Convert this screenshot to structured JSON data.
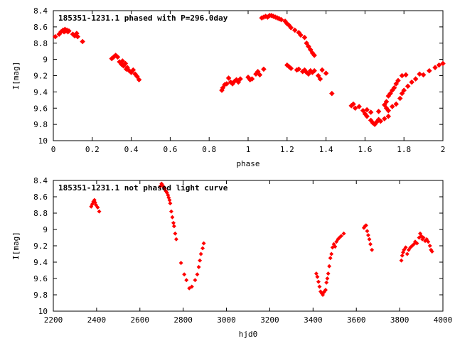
{
  "chart_data": [
    {
      "type": "scatter",
      "title": "185351-1231.1 phased with P=296.0day",
      "xlabel": "phase",
      "ylabel": "I[mag]",
      "xlim": [
        0,
        2
      ],
      "ylim": [
        8.4,
        10
      ],
      "y_inverted": true,
      "xticks": [
        "0",
        "0.2",
        "0.4",
        "0.6",
        "0.8",
        "1",
        "1.2",
        "1.4",
        "1.6",
        "1.8",
        "2"
      ],
      "yticks": [
        "8.4",
        "8.6",
        "8.8",
        "9",
        "9.2",
        "9.4",
        "9.6",
        "9.8",
        "10"
      ],
      "grid": false,
      "marker": "diamond",
      "color": "#ff0000",
      "points": [
        [
          0.01,
          8.72
        ],
        [
          0.03,
          8.69
        ],
        [
          0.04,
          8.66
        ],
        [
          0.05,
          8.64
        ],
        [
          0.055,
          8.66
        ],
        [
          0.06,
          8.63
        ],
        [
          0.065,
          8.65
        ],
        [
          0.07,
          8.64
        ],
        [
          0.075,
          8.66
        ],
        [
          0.08,
          8.65
        ],
        [
          0.1,
          8.69
        ],
        [
          0.11,
          8.71
        ],
        [
          0.12,
          8.68
        ],
        [
          0.125,
          8.72
        ],
        [
          0.15,
          8.78
        ],
        [
          0.3,
          8.99
        ],
        [
          0.31,
          8.97
        ],
        [
          0.32,
          8.95
        ],
        [
          0.33,
          8.97
        ],
        [
          0.34,
          9.03
        ],
        [
          0.35,
          9.06
        ],
        [
          0.355,
          9.02
        ],
        [
          0.36,
          9.08
        ],
        [
          0.37,
          9.05
        ],
        [
          0.375,
          9.12
        ],
        [
          0.38,
          9.1
        ],
        [
          0.39,
          9.14
        ],
        [
          0.4,
          9.16
        ],
        [
          0.41,
          9.13
        ],
        [
          0.42,
          9.18
        ],
        [
          0.43,
          9.21
        ],
        [
          0.44,
          9.25
        ],
        [
          0.865,
          9.38
        ],
        [
          0.87,
          9.35
        ],
        [
          0.88,
          9.31
        ],
        [
          0.89,
          9.3
        ],
        [
          0.9,
          9.23
        ],
        [
          0.91,
          9.28
        ],
        [
          0.92,
          9.3
        ],
        [
          0.93,
          9.27
        ],
        [
          0.94,
          9.25
        ],
        [
          0.95,
          9.28
        ],
        [
          0.96,
          9.24
        ],
        [
          1.0,
          9.22
        ],
        [
          1.01,
          9.25
        ],
        [
          1.02,
          9.24
        ],
        [
          1.04,
          9.18
        ],
        [
          1.05,
          9.15
        ],
        [
          1.06,
          9.19
        ],
        [
          1.08,
          9.12
        ],
        [
          1.07,
          8.49
        ],
        [
          1.08,
          8.48
        ],
        [
          1.09,
          8.47
        ],
        [
          1.1,
          8.48
        ],
        [
          1.11,
          8.46
        ],
        [
          1.12,
          8.46
        ],
        [
          1.13,
          8.47
        ],
        [
          1.14,
          8.48
        ],
        [
          1.15,
          8.49
        ],
        [
          1.16,
          8.5
        ],
        [
          1.17,
          8.51
        ],
        [
          1.19,
          8.53
        ],
        [
          1.2,
          8.56
        ],
        [
          1.21,
          8.58
        ],
        [
          1.22,
          8.61
        ],
        [
          1.24,
          8.64
        ],
        [
          1.26,
          8.67
        ],
        [
          1.27,
          8.7
        ],
        [
          1.29,
          8.73
        ],
        [
          1.3,
          8.8
        ],
        [
          1.31,
          8.84
        ],
        [
          1.32,
          8.88
        ],
        [
          1.33,
          8.92
        ],
        [
          1.34,
          8.95
        ],
        [
          1.2,
          9.07
        ],
        [
          1.21,
          9.09
        ],
        [
          1.22,
          9.11
        ],
        [
          1.25,
          9.13
        ],
        [
          1.26,
          9.12
        ],
        [
          1.28,
          9.15
        ],
        [
          1.29,
          9.13
        ],
        [
          1.3,
          9.16
        ],
        [
          1.31,
          9.18
        ],
        [
          1.32,
          9.14
        ],
        [
          1.33,
          9.16
        ],
        [
          1.34,
          9.14
        ],
        [
          1.36,
          9.2
        ],
        [
          1.37,
          9.24
        ],
        [
          1.38,
          9.13
        ],
        [
          1.4,
          9.17
        ],
        [
          1.43,
          9.42
        ],
        [
          1.53,
          9.57
        ],
        [
          1.54,
          9.55
        ],
        [
          1.55,
          9.6
        ],
        [
          1.57,
          9.58
        ],
        [
          1.59,
          9.63
        ],
        [
          1.6,
          9.67
        ],
        [
          1.61,
          9.7
        ],
        [
          1.63,
          9.75
        ],
        [
          1.64,
          9.78
        ],
        [
          1.65,
          9.8
        ],
        [
          1.66,
          9.77
        ],
        [
          1.67,
          9.74
        ],
        [
          1.68,
          9.76
        ],
        [
          1.7,
          9.73
        ],
        [
          1.72,
          9.7
        ],
        [
          1.61,
          9.62
        ],
        [
          1.63,
          9.65
        ],
        [
          1.67,
          9.64
        ],
        [
          1.7,
          9.56
        ],
        [
          1.71,
          9.52
        ],
        [
          1.72,
          9.45
        ],
        [
          1.73,
          9.42
        ],
        [
          1.74,
          9.38
        ],
        [
          1.75,
          9.35
        ],
        [
          1.76,
          9.3
        ],
        [
          1.77,
          9.26
        ],
        [
          1.71,
          9.6
        ],
        [
          1.72,
          9.63
        ],
        [
          1.74,
          9.58
        ],
        [
          1.76,
          9.55
        ],
        [
          1.78,
          9.48
        ],
        [
          1.79,
          9.42
        ],
        [
          1.8,
          9.38
        ],
        [
          1.82,
          9.33
        ],
        [
          1.84,
          9.28
        ],
        [
          1.86,
          9.24
        ],
        [
          1.79,
          9.2
        ],
        [
          1.81,
          9.19
        ],
        [
          1.88,
          9.18
        ],
        [
          1.9,
          9.19
        ],
        [
          1.93,
          9.14
        ],
        [
          1.96,
          9.1
        ],
        [
          1.98,
          9.07
        ],
        [
          2.0,
          9.05
        ]
      ]
    },
    {
      "type": "scatter",
      "title": "185351-1231.1 not phased light curve",
      "xlabel": "hjd0",
      "ylabel": "I[mag]",
      "xlim": [
        2200,
        4000
      ],
      "ylim": [
        8.4,
        10
      ],
      "y_inverted": true,
      "xticks": [
        "2200",
        "2400",
        "2600",
        "2800",
        "3000",
        "3200",
        "3400",
        "3600",
        "3800",
        "4000"
      ],
      "yticks": [
        "8.4",
        "8.6",
        "8.8",
        "9",
        "9.2",
        "9.4",
        "9.6",
        "9.8",
        "10"
      ],
      "grid": false,
      "marker": "diamond",
      "color": "#ff0000",
      "points": [
        [
          2375,
          8.72
        ],
        [
          2380,
          8.69
        ],
        [
          2385,
          8.66
        ],
        [
          2390,
          8.64
        ],
        [
          2393,
          8.67
        ],
        [
          2397,
          8.7
        ],
        [
          2405,
          8.73
        ],
        [
          2412,
          8.78
        ],
        [
          2695,
          8.47
        ],
        [
          2700,
          8.44
        ],
        [
          2705,
          8.46
        ],
        [
          2710,
          8.48
        ],
        [
          2715,
          8.5
        ],
        [
          2720,
          8.53
        ],
        [
          2725,
          8.55
        ],
        [
          2730,
          8.58
        ],
        [
          2733,
          8.61
        ],
        [
          2737,
          8.64
        ],
        [
          2740,
          8.68
        ],
        [
          2745,
          8.78
        ],
        [
          2750,
          8.85
        ],
        [
          2755,
          8.92
        ],
        [
          2758,
          8.96
        ],
        [
          2763,
          9.05
        ],
        [
          2768,
          9.12
        ],
        [
          2790,
          9.41
        ],
        [
          2805,
          9.55
        ],
        [
          2815,
          9.62
        ],
        [
          2828,
          9.72
        ],
        [
          2840,
          9.7
        ],
        [
          2855,
          9.62
        ],
        [
          2865,
          9.55
        ],
        [
          2872,
          9.46
        ],
        [
          2877,
          9.38
        ],
        [
          2882,
          9.3
        ],
        [
          2890,
          9.23
        ],
        [
          2895,
          9.17
        ],
        [
          3415,
          9.54
        ],
        [
          3420,
          9.58
        ],
        [
          3425,
          9.64
        ],
        [
          3430,
          9.7
        ],
        [
          3435,
          9.76
        ],
        [
          3440,
          9.78
        ],
        [
          3445,
          9.8
        ],
        [
          3450,
          9.77
        ],
        [
          3455,
          9.75
        ],
        [
          3458,
          9.74
        ],
        [
          3462,
          9.65
        ],
        [
          3466,
          9.6
        ],
        [
          3470,
          9.54
        ],
        [
          3475,
          9.45
        ],
        [
          3480,
          9.35
        ],
        [
          3485,
          9.3
        ],
        [
          3490,
          9.22
        ],
        [
          3496,
          9.18
        ],
        [
          3502,
          9.21
        ],
        [
          3508,
          9.15
        ],
        [
          3515,
          9.12
        ],
        [
          3522,
          9.1
        ],
        [
          3530,
          9.08
        ],
        [
          3542,
          9.05
        ],
        [
          3635,
          8.98
        ],
        [
          3640,
          8.96
        ],
        [
          3645,
          8.95
        ],
        [
          3650,
          9.02
        ],
        [
          3655,
          9.07
        ],
        [
          3660,
          9.12
        ],
        [
          3665,
          9.18
        ],
        [
          3672,
          9.25
        ],
        [
          3808,
          9.38
        ],
        [
          3812,
          9.32
        ],
        [
          3816,
          9.28
        ],
        [
          3820,
          9.25
        ],
        [
          3828,
          9.22
        ],
        [
          3835,
          9.3
        ],
        [
          3842,
          9.25
        ],
        [
          3850,
          9.22
        ],
        [
          3858,
          9.2
        ],
        [
          3866,
          9.18
        ],
        [
          3872,
          9.15
        ],
        [
          3880,
          9.17
        ],
        [
          3890,
          9.1
        ],
        [
          3895,
          9.05
        ],
        [
          3900,
          9.08
        ],
        [
          3905,
          9.12
        ],
        [
          3910,
          9.1
        ],
        [
          3918,
          9.14
        ],
        [
          3925,
          9.12
        ],
        [
          3932,
          9.15
        ],
        [
          3940,
          9.2
        ],
        [
          3945,
          9.25
        ],
        [
          3950,
          9.27
        ]
      ]
    }
  ]
}
